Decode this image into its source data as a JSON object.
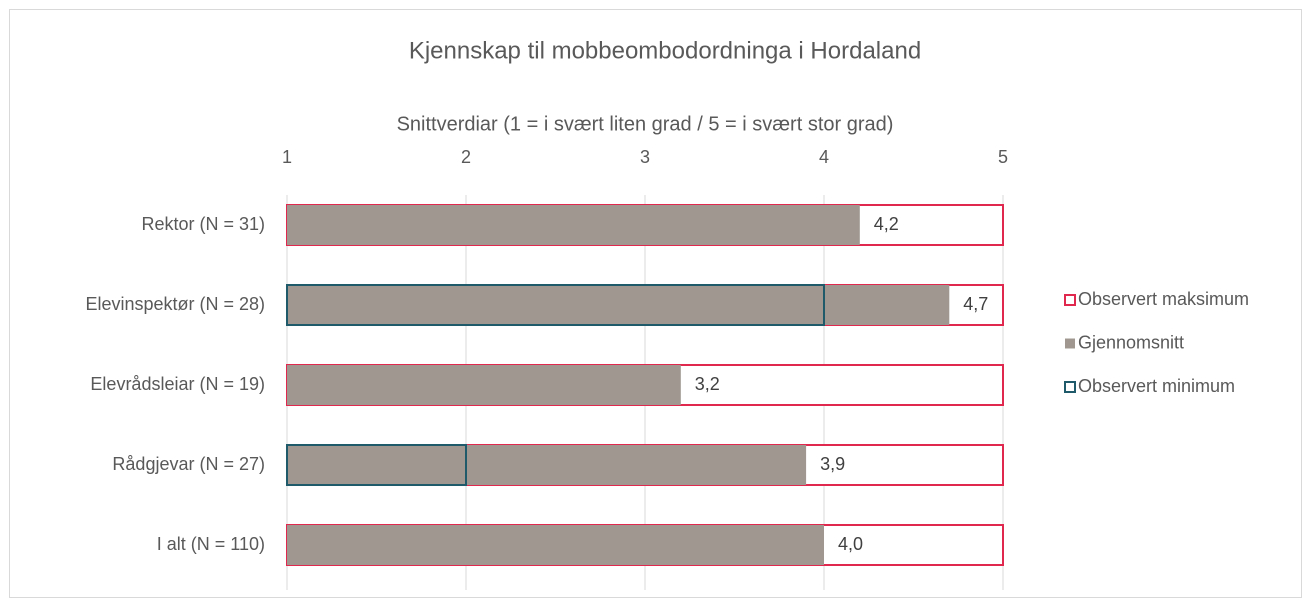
{
  "chart_data": {
    "type": "bar",
    "orientation": "horizontal",
    "title": "Kjennskap til mobbeombodordninga i Hordaland",
    "x_axis_label": "Snittverdiar (1 = i svært liten grad / 5 = i svært stor grad)",
    "categories": [
      "Rektor (N = 31)",
      "Elevinspektør (N = 28)",
      "Elevrådsleiar (N = 19)",
      "Rådgjevar (N = 27)",
      "I alt (N = 110)"
    ],
    "series": [
      {
        "name": "Observert maksimum",
        "color": "#e0284f",
        "style": "outline",
        "values": [
          5,
          5,
          5,
          5,
          5
        ]
      },
      {
        "name": "Gjennomsnitt",
        "color": "#a09890",
        "style": "fill",
        "values": [
          4.2,
          4.7,
          3.2,
          3.9,
          4.0
        ],
        "value_labels": [
          "4,2",
          "4,7",
          "3,2",
          "3,9",
          "4,0"
        ]
      },
      {
        "name": "Observert minimum",
        "color": "#1f5a6b",
        "style": "outline",
        "values": [
          1,
          4,
          1,
          2,
          1
        ]
      }
    ],
    "xlim": [
      1,
      5
    ],
    "xticks": [
      1,
      2,
      3,
      4,
      5
    ],
    "grid": true,
    "legend": "right"
  }
}
